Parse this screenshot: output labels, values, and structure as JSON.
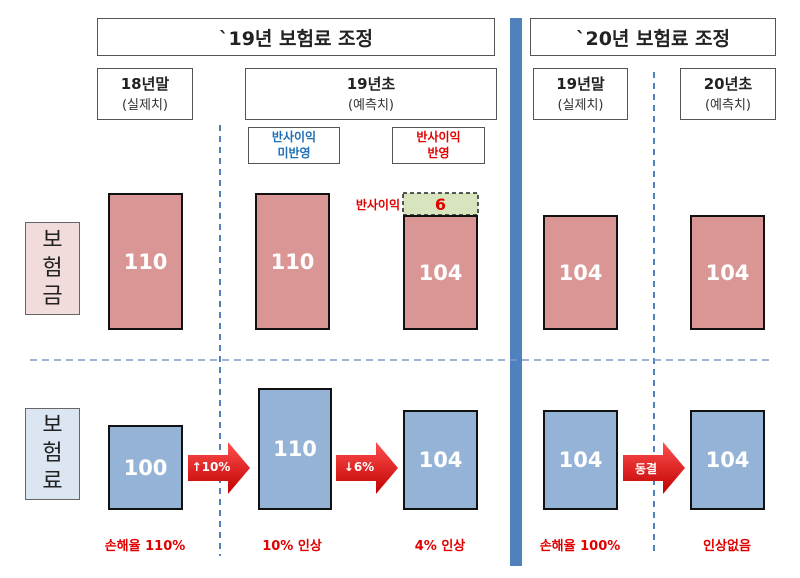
{
  "headers": [
    "`19년 보험료 조정",
    "`20년 보험료 조정"
  ],
  "columns": [
    {
      "label": "18년말",
      "sub": "(실제치)"
    },
    {
      "label": "19년초",
      "sub": "(예측치)"
    },
    {
      "label": "19년말",
      "sub": "(실제치)"
    },
    {
      "label": "20년초",
      "sub": "(예측치)"
    }
  ],
  "scenarios": [
    {
      "line1": "반사이익",
      "line2": "미반영"
    },
    {
      "line1": "반사이익",
      "line2": "반영"
    }
  ],
  "rows": [
    {
      "label": "보험금",
      "values": [
        110,
        110,
        104,
        104,
        104
      ]
    },
    {
      "label": "보험료",
      "values": [
        100,
        110,
        104,
        104,
        104
      ]
    }
  ],
  "reflection": {
    "label": "반사이익",
    "value": 6
  },
  "arrows": [
    "↑10%",
    "↓6%",
    "동결"
  ],
  "notes": [
    "손해율 110%",
    "10% 인상",
    "4% 인상",
    "손해율 100%",
    "인상없음"
  ]
}
